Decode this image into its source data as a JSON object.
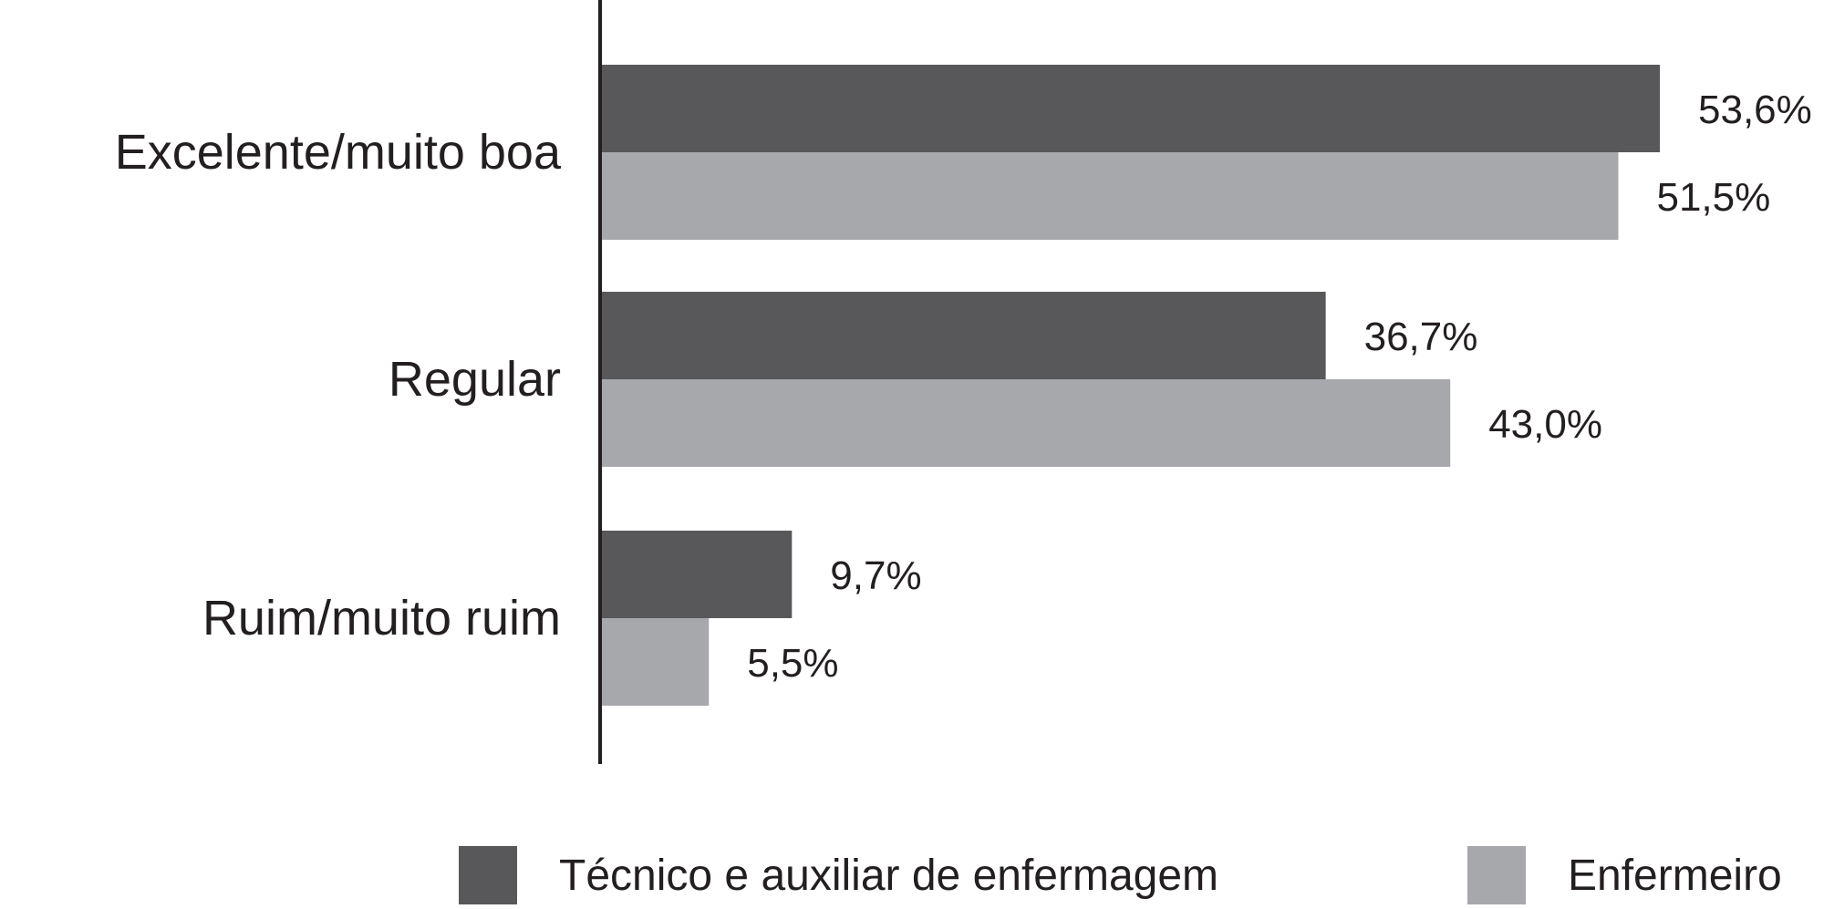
{
  "chart_data": {
    "type": "bar",
    "orientation": "horizontal",
    "categories": [
      "Excelente/muito boa",
      "Regular",
      "Ruim/muito ruim"
    ],
    "series": [
      {
        "name": "Técnico e auxiliar de enfermagem",
        "values": [
          53.6,
          36.7,
          9.7
        ],
        "labels": [
          "53,6%",
          "36,7%",
          "9,7%"
        ],
        "color": "#58585a"
      },
      {
        "name": "Enfermeiro",
        "values": [
          51.5,
          43.0,
          5.5
        ],
        "labels": [
          "51,5%",
          "43,0%",
          "5,5%"
        ],
        "color": "#a7a8ab"
      }
    ],
    "xlim": [
      0,
      55
    ],
    "legend_position": "bottom",
    "grid": false
  }
}
